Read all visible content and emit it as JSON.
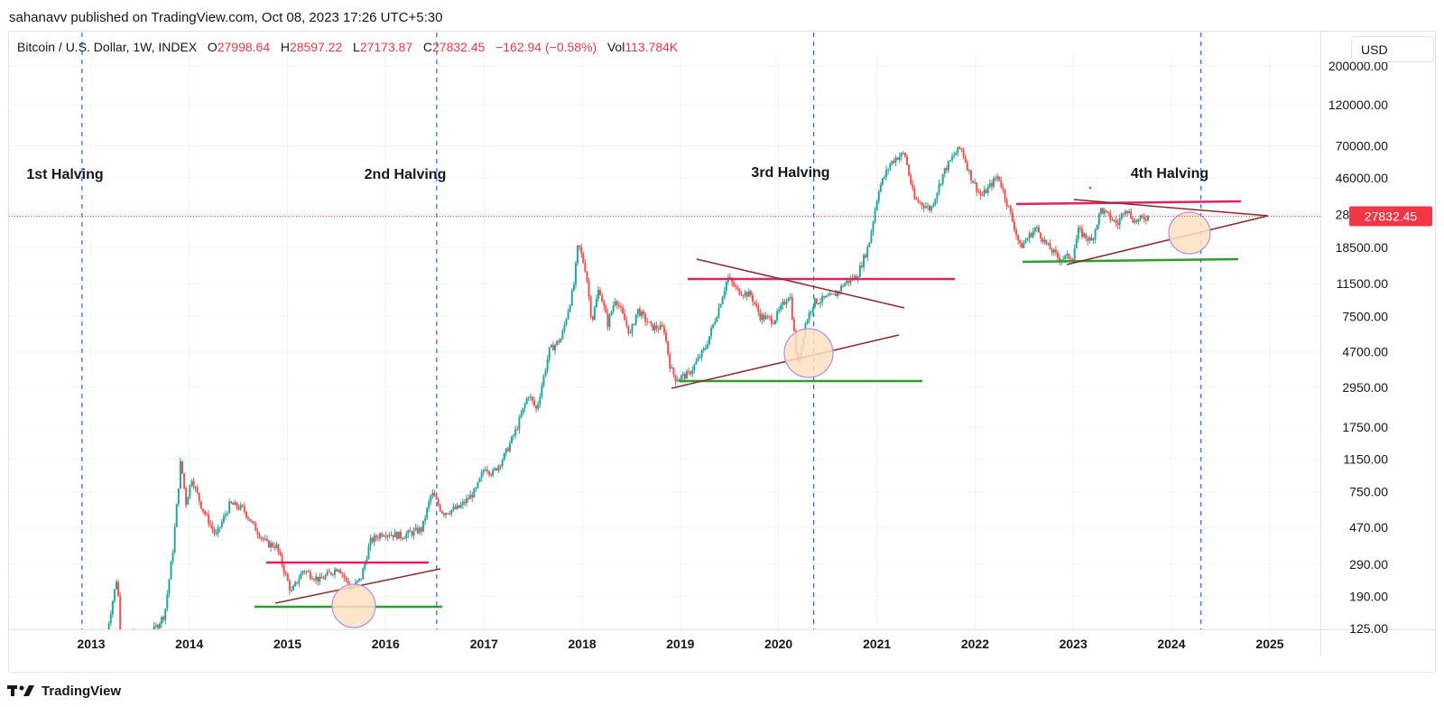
{
  "publisher_line": "sahanavv published on TradingView.com, Oct 08, 2023 17:26 UTC+5:30",
  "legend": {
    "symbol": "Bitcoin / U.S. Dollar, 1W, INDEX",
    "o_label": "O",
    "o_value": "27998.64",
    "h_label": "H",
    "h_value": "28597.22",
    "l_label": "L",
    "l_value": "27173.87",
    "c_label": "C",
    "c_value": "27832.45",
    "change": "−162.94 (−0.58%)",
    "vol_label": "Vol",
    "vol_value": "113.784K"
  },
  "currency_button": "USD",
  "footer_brand": "TradingView",
  "colors": {
    "bull": "#26a69a",
    "bear": "#ef5350",
    "halving_line": "#2962ff",
    "resistance": "#e91e63",
    "support": "#2e9e2e",
    "trendline": "#8e2a2a",
    "circle_fill": "#fde0c2",
    "circle_stroke": "#b48ce6",
    "price_line": "#f23645"
  },
  "chart_data": {
    "type": "candlestick",
    "scale": "log",
    "ylim": [
      105,
      260000
    ],
    "xlim": [
      "2012-08-01",
      "2025-08-01"
    ],
    "yticks": [
      200000,
      120000,
      70000,
      46000,
      28500,
      18500,
      11500,
      7500,
      4700,
      2950,
      1750,
      1150,
      750,
      470,
      290,
      190,
      125
    ],
    "ytick_labels": [
      "200000.00",
      "120000.00",
      "70000.00",
      "46000.00",
      "28500.00",
      "18500.00",
      "11500.00",
      "7500.00",
      "4700.00",
      "2950.00",
      "1750.00",
      "1150.00",
      "750.00",
      "470.00",
      "290.00",
      "190.00",
      "125.00"
    ],
    "xticks": [
      "2013",
      "2014",
      "2015",
      "2016",
      "2017",
      "2018",
      "2019",
      "2020",
      "2021",
      "2022",
      "2023",
      "2024",
      "2025"
    ],
    "last_price": 27832.45,
    "last_price_label": "27832.45",
    "price_path": [
      [
        "2013-03-01",
        120
      ],
      [
        "2013-04-08",
        250
      ],
      [
        "2013-04-20",
        110
      ],
      [
        "2013-06-01",
        115
      ],
      [
        "2013-08-01",
        110
      ],
      [
        "2013-10-01",
        150
      ],
      [
        "2013-11-01",
        350
      ],
      [
        "2013-11-30",
        1130
      ],
      [
        "2013-12-20",
        650
      ],
      [
        "2014-01-10",
        900
      ],
      [
        "2014-02-15",
        620
      ],
      [
        "2014-04-10",
        420
      ],
      [
        "2014-06-01",
        640
      ],
      [
        "2014-07-20",
        600
      ],
      [
        "2014-09-01",
        470
      ],
      [
        "2014-10-15",
        380
      ],
      [
        "2014-11-20",
        370
      ],
      [
        "2015-01-15",
        200
      ],
      [
        "2015-03-01",
        270
      ],
      [
        "2015-05-01",
        235
      ],
      [
        "2015-07-10",
        280
      ],
      [
        "2015-08-25",
        210
      ],
      [
        "2015-10-01",
        240
      ],
      [
        "2015-11-05",
        390
      ],
      [
        "2015-12-20",
        440
      ],
      [
        "2016-03-01",
        420
      ],
      [
        "2016-05-15",
        460
      ],
      [
        "2016-06-20",
        740
      ],
      [
        "2016-08-01",
        570
      ],
      [
        "2016-10-01",
        610
      ],
      [
        "2016-12-01",
        760
      ],
      [
        "2017-01-05",
        1050
      ],
      [
        "2017-02-01",
        950
      ],
      [
        "2017-03-15",
        1180
      ],
      [
        "2017-05-01",
        1700
      ],
      [
        "2017-06-15",
        2700
      ],
      [
        "2017-07-15",
        2200
      ],
      [
        "2017-09-01",
        4800
      ],
      [
        "2017-10-15",
        5600
      ],
      [
        "2017-11-30",
        11000
      ],
      [
        "2017-12-17",
        19500
      ],
      [
        "2018-01-15",
        13500
      ],
      [
        "2018-02-06",
        7000
      ],
      [
        "2018-03-05",
        11000
      ],
      [
        "2018-04-06",
        6800
      ],
      [
        "2018-05-05",
        9600
      ],
      [
        "2018-06-29",
        5900
      ],
      [
        "2018-07-25",
        8200
      ],
      [
        "2018-09-15",
        6500
      ],
      [
        "2018-11-01",
        6400
      ],
      [
        "2018-11-25",
        3800
      ],
      [
        "2018-12-15",
        3300
      ],
      [
        "2019-02-01",
        3500
      ],
      [
        "2019-04-05",
        5000
      ],
      [
        "2019-05-20",
        8000
      ],
      [
        "2019-06-26",
        12500
      ],
      [
        "2019-08-01",
        10500
      ],
      [
        "2019-09-20",
        9900
      ],
      [
        "2019-10-25",
        7500
      ],
      [
        "2019-12-15",
        7100
      ],
      [
        "2020-02-12",
        10200
      ],
      [
        "2020-03-12",
        3900
      ],
      [
        "2020-04-10",
        6800
      ],
      [
        "2020-05-10",
        9000
      ],
      [
        "2020-07-25",
        9800
      ],
      [
        "2020-09-01",
        11500
      ],
      [
        "2020-10-20",
        12800
      ],
      [
        "2020-12-01",
        19000
      ],
      [
        "2021-01-08",
        40000
      ],
      [
        "2021-02-21",
        56000
      ],
      [
        "2021-03-13",
        60000
      ],
      [
        "2021-04-14",
        63500
      ],
      [
        "2021-05-19",
        35000
      ],
      [
        "2021-07-20",
        30500
      ],
      [
        "2021-09-07",
        50000
      ],
      [
        "2021-10-20",
        64000
      ],
      [
        "2021-11-10",
        68500
      ],
      [
        "2021-12-15",
        47000
      ],
      [
        "2022-01-24",
        36000
      ],
      [
        "2022-03-28",
        47500
      ],
      [
        "2022-05-12",
        29000
      ],
      [
        "2022-06-18",
        18500
      ],
      [
        "2022-08-15",
        24000
      ],
      [
        "2022-09-25",
        19000
      ],
      [
        "2022-11-09",
        16000
      ],
      [
        "2022-12-30",
        16500
      ],
      [
        "2023-01-20",
        23000
      ],
      [
        "2023-03-10",
        20000
      ],
      [
        "2023-04-14",
        30500
      ],
      [
        "2023-06-15",
        25000
      ],
      [
        "2023-07-13",
        31500
      ],
      [
        "2023-08-17",
        26000
      ],
      [
        "2023-10-08",
        27832
      ]
    ]
  },
  "annotations": {
    "halving_labels": [
      "1st Halving",
      "2nd Halving",
      "3rd Halving",
      "4th Halving"
    ]
  }
}
